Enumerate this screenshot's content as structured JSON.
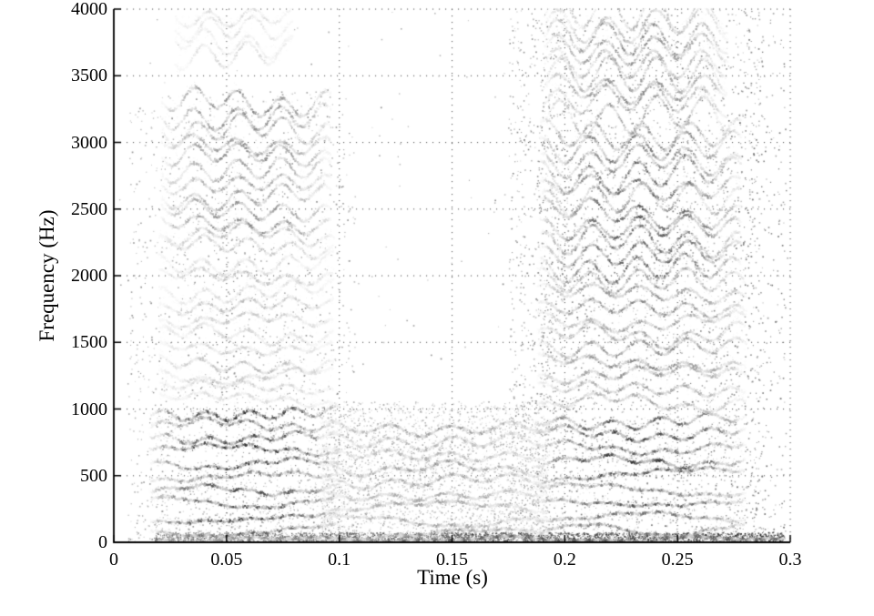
{
  "figure": {
    "background": "#ffffff",
    "axis_color": "#000000"
  },
  "chart_data": {
    "type": "scatter",
    "variant": "time-frequency spectrogram point cloud (grayscale, darker = more energy)",
    "title": "",
    "xlabel": "Time (s)",
    "ylabel": "Frequency (Hz)",
    "xlim": [
      0,
      0.3
    ],
    "ylim": [
      0,
      4000
    ],
    "xticks": [
      0,
      0.05,
      0.1,
      0.15,
      0.2,
      0.25,
      0.3
    ],
    "xtick_labels": [
      "0",
      "0.05",
      "0.1",
      "0.15",
      "0.2",
      "0.25",
      "0.3"
    ],
    "yticks": [
      0,
      500,
      1000,
      1500,
      2000,
      2500,
      3000,
      3500,
      4000
    ],
    "ytick_labels": [
      "0",
      "500",
      "1000",
      "1500",
      "2000",
      "2500",
      "3000",
      "3500",
      "4000"
    ],
    "grid": {
      "style": "dotted",
      "color": "#5a5a5a",
      "dot_spacing_px": 7
    },
    "box": "open-left-bottom-solid, top-right-dotted-grid",
    "point_gray_range": [
      "#222222",
      "#e6e6e6"
    ],
    "seed": 11,
    "segments": [
      {
        "name": "segment1-low-harmonics",
        "t": [
          0.016,
          0.1
        ],
        "f": [
          95,
          1005
        ],
        "spacing": 103,
        "gray": 0.3,
        "gray_jitter": 0.17,
        "vibrato": {
          "frac": 0.028,
          "rate": 52
        }
      },
      {
        "name": "segment1-mid-harmonics",
        "t": [
          0.02,
          0.097
        ],
        "f": [
          1055,
          2340
        ],
        "spacing": 104,
        "gray": 0.77,
        "gray_jitter": 0.08,
        "vibrato": {
          "frac": 0.024,
          "rate": 52
        }
      },
      {
        "name": "segment1-high-harmonics",
        "t": [
          0.021,
          0.096
        ],
        "f": [
          2390,
          3370
        ],
        "spacing": 103,
        "gray": 0.56,
        "gray_jitter": 0.1,
        "vibrato": {
          "frac": 0.022,
          "rate": 52
        }
      },
      {
        "name": "segment1-top-wisps",
        "t": [
          0.027,
          0.079
        ],
        "f": [
          3670,
          3960
        ],
        "spacing": 92,
        "gray": 0.86,
        "gray_jitter": 0.05,
        "vibrato": {
          "frac": 0.02,
          "rate": 52
        }
      },
      {
        "name": "segment2-low-harmonics",
        "t": [
          0.092,
          0.192
        ],
        "f": [
          65,
          950
        ],
        "spacing": 99,
        "gray": 0.64,
        "gray_jitter": 0.12,
        "vibrato": {
          "frac": 0.055,
          "rate": 38
        }
      },
      {
        "name": "segment3-low-harmonics",
        "t": [
          0.186,
          0.28
        ],
        "f": [
          95,
          1005
        ],
        "spacing": 101,
        "gray": 0.3,
        "gray_jitter": 0.16,
        "vibrato": {
          "frac": 0.03,
          "rate": 47
        }
      },
      {
        "name": "segment3-mid-harmonics",
        "t": [
          0.188,
          0.28
        ],
        "f": [
          1055,
          2005
        ],
        "spacing": 101,
        "gray": 0.55,
        "gray_jitter": 0.1,
        "vibrato": {
          "frac": 0.032,
          "rate": 47
        }
      },
      {
        "name": "segment3-upper-harmonics",
        "t": [
          0.189,
          0.278
        ],
        "f": [
          2055,
          3155
        ],
        "spacing": 101,
        "gray": 0.43,
        "gray_jitter": 0.12,
        "vibrato": {
          "frac": 0.034,
          "rate": 47
        }
      },
      {
        "name": "segment3-top-harmonics",
        "t": [
          0.191,
          0.272
        ],
        "f": [
          3205,
          3995
        ],
        "spacing": 97,
        "gray": 0.6,
        "gray_jitter": 0.1,
        "vibrato": {
          "frac": 0.03,
          "rate": 47
        }
      },
      {
        "name": "bottom-edge-band",
        "t": [
          0.02,
          0.297
        ],
        "f": [
          28,
          62
        ],
        "spacing": 34,
        "gray": 0.5,
        "gray_end": 0.18,
        "gray_jitter": 0.08,
        "envelope": "flat",
        "vibrato": {
          "frac": 0.3,
          "rate": 25
        }
      }
    ],
    "noise": [
      {
        "name": "ambient-speckle",
        "t": [
          0.002,
          0.299
        ],
        "f": [
          0,
          3990
        ],
        "count": 230,
        "gray": [
          0.5,
          0.8
        ],
        "bias": 1.0
      },
      {
        "name": "segment1-halo",
        "t": [
          0.006,
          0.107
        ],
        "f": [
          0,
          3400
        ],
        "count": 1700,
        "gray": [
          0.5,
          0.82
        ],
        "bias": 1.55
      },
      {
        "name": "segment2-dust",
        "t": [
          0.092,
          0.193
        ],
        "f": [
          0,
          1060
        ],
        "count": 2400,
        "gray": [
          0.6,
          0.9
        ],
        "bias": 1.15
      },
      {
        "name": "onset-speckle",
        "t": [
          0.175,
          0.201
        ],
        "f": [
          0,
          4000
        ],
        "count": 750,
        "gray": [
          0.45,
          0.78
        ],
        "bias": 1.2
      },
      {
        "name": "segment3-halo",
        "t": [
          0.188,
          0.288
        ],
        "f": [
          0,
          4000
        ],
        "count": 2300,
        "gray": [
          0.42,
          0.78
        ],
        "bias": 1.12
      },
      {
        "name": "right-tail-speckle",
        "t": [
          0.27,
          0.298
        ],
        "f": [
          0,
          4000
        ],
        "count": 430,
        "gray": [
          0.35,
          0.7
        ],
        "bias": 1.35
      },
      {
        "name": "bottom-strip-dust",
        "t": [
          0.018,
          0.297
        ],
        "f": [
          8,
          75
        ],
        "count": 2300,
        "gray": [
          0.32,
          0.62
        ],
        "darken_with_t": 0.22
      }
    ]
  }
}
